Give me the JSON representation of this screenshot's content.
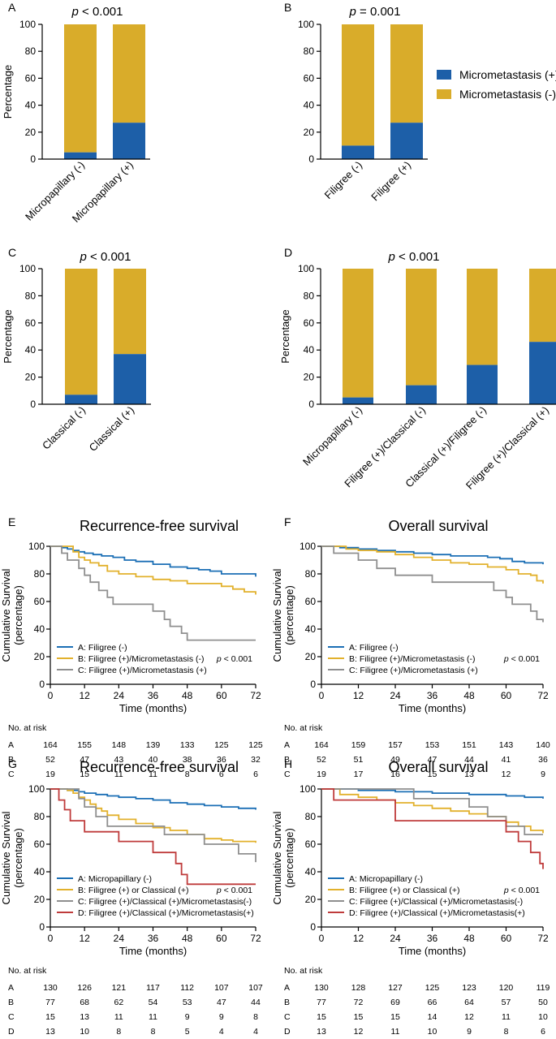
{
  "colors": {
    "positive": "#1d5fa8",
    "negative": "#d9ac2a",
    "line_a": "#1b6fb5",
    "line_b": "#e2b12c",
    "line_c": "#8f8f8f",
    "line_d": "#bf3b3b"
  },
  "legend_top": {
    "positive": "Micrometastasis (+)",
    "negative": "Micrometastasis (-)"
  },
  "chart_data": [
    {
      "panel": "A",
      "type": "bar",
      "stacked": true,
      "title": "< 0.001",
      "ylabel": "Percentage",
      "ylim": [
        0,
        100
      ],
      "yticks": [
        "0",
        "20",
        "40",
        "60",
        "80",
        "100"
      ],
      "categories": [
        "Micropapillary  (-)",
        "Micropapillary (+)"
      ],
      "series": [
        {
          "name": "Micrometastasis (+)",
          "values": [
            5,
            27
          ]
        },
        {
          "name": "Micrometastasis (-)",
          "values": [
            95,
            73
          ]
        }
      ]
    },
    {
      "panel": "B",
      "type": "bar",
      "stacked": true,
      "title": "= 0.001",
      "ylabel": "",
      "ylim": [
        0,
        100
      ],
      "yticks": [
        "0",
        "20",
        "40",
        "60",
        "80",
        "100"
      ],
      "categories": [
        "Filigree (-)",
        "Filigree (+)"
      ],
      "series": [
        {
          "name": "Micrometastasis (+)",
          "values": [
            10,
            27
          ]
        },
        {
          "name": "Micrometastasis (-)",
          "values": [
            90,
            73
          ]
        }
      ]
    },
    {
      "panel": "C",
      "type": "bar",
      "stacked": true,
      "title": "< 0.001",
      "ylabel": "Percentage",
      "ylim": [
        0,
        100
      ],
      "yticks": [
        "0",
        "20",
        "40",
        "60",
        "80",
        "100"
      ],
      "categories": [
        "Classical (-)",
        "Classical (+)"
      ],
      "series": [
        {
          "name": "Micrometastasis (+)",
          "values": [
            7,
            37
          ]
        },
        {
          "name": "Micrometastasis (-)",
          "values": [
            93,
            63
          ]
        }
      ]
    },
    {
      "panel": "D",
      "type": "bar",
      "stacked": true,
      "title": "< 0.001",
      "ylabel": "Percentage",
      "ylim": [
        0,
        100
      ],
      "yticks": [
        "0",
        "20",
        "40",
        "60",
        "80",
        "100"
      ],
      "categories": [
        "Micropapillary  (-)",
        "Filigree (+)/Classical (-)",
        "Classical (+)/Filigree (-)",
        "Filigree (+)/Classical (+)"
      ],
      "series": [
        {
          "name": "Micrometastasis (+)",
          "values": [
            5,
            14,
            29,
            46
          ]
        },
        {
          "name": "Micrometastasis (-)",
          "values": [
            95,
            86,
            71,
            54
          ]
        }
      ]
    },
    {
      "panel": "E",
      "type": "line",
      "step": true,
      "title": "Recurrence-free survival",
      "xlabel": "Time (months)",
      "ylabel": "Cumulative Survival (percentage)",
      "ylabel_lines": [
        "Cumulative Survival",
        "(percentage)"
      ],
      "xlim": [
        0,
        72
      ],
      "ylim": [
        0,
        100
      ],
      "xticks": [
        "0",
        "12",
        "24",
        "36",
        "48",
        "60",
        "72"
      ],
      "yticks": [
        "0",
        "20",
        "40",
        "60",
        "80",
        "100"
      ],
      "pvalue": "< 0.001",
      "series": [
        {
          "name": "A: Filigree (-)",
          "color_key": "line_a",
          "x": [
            0,
            4,
            6,
            8,
            10,
            12,
            15,
            18,
            22,
            26,
            30,
            36,
            42,
            48,
            52,
            56,
            60,
            66,
            72
          ],
          "y": [
            100,
            99,
            98,
            97,
            96,
            95,
            94,
            93,
            92,
            90,
            89,
            87,
            85,
            84,
            83,
            82,
            80,
            80,
            78
          ]
        },
        {
          "name": "B: Filigree (+)/Micrometastasis (-)",
          "color_key": "line_b",
          "x": [
            0,
            6,
            8,
            10,
            12,
            14,
            17,
            20,
            24,
            30,
            36,
            42,
            48,
            52,
            60,
            64,
            68,
            72
          ],
          "y": [
            100,
            100,
            96,
            92,
            90,
            88,
            86,
            82,
            80,
            78,
            76,
            75,
            73,
            73,
            71,
            69,
            67,
            65
          ]
        },
        {
          "name": "C: Filigree (+)/Micrometastasis (+)",
          "color_key": "line_c",
          "x": [
            0,
            4,
            6,
            10,
            12,
            14,
            17,
            20,
            22,
            24,
            30,
            36,
            40,
            42,
            46,
            48,
            50,
            72
          ],
          "y": [
            100,
            95,
            90,
            84,
            79,
            74,
            68,
            63,
            58,
            58,
            58,
            53,
            47,
            42,
            37,
            32,
            32,
            32
          ]
        }
      ],
      "risk_label": "No. at risk",
      "risk_rows": [
        {
          "label": "A",
          "values": [
            "164",
            "155",
            "148",
            "139",
            "133",
            "125",
            "125"
          ]
        },
        {
          "label": "B",
          "values": [
            "52",
            "47",
            "43",
            "40",
            "38",
            "36",
            "32"
          ]
        },
        {
          "label": "C",
          "values": [
            "19",
            "15",
            "11",
            "11",
            "8",
            "6",
            "6"
          ]
        }
      ]
    },
    {
      "panel": "F",
      "type": "line",
      "step": true,
      "title": "Overall survival",
      "xlabel": "Time (months)",
      "ylabel": "Cumulative Survival (percentage)",
      "ylabel_lines": [
        "Cumulative Survival",
        "(percentage)"
      ],
      "xlim": [
        0,
        72
      ],
      "ylim": [
        0,
        100
      ],
      "xticks": [
        "0",
        "12",
        "24",
        "36",
        "48",
        "60",
        "72"
      ],
      "yticks": [
        "0",
        "20",
        "40",
        "60",
        "80",
        "100"
      ],
      "pvalue": "< 0.001",
      "series": [
        {
          "name": "A: Filigree (-)",
          "color_key": "line_a",
          "x": [
            0,
            6,
            12,
            18,
            24,
            30,
            36,
            42,
            48,
            54,
            58,
            62,
            66,
            72
          ],
          "y": [
            100,
            99,
            98,
            97,
            96,
            95,
            94,
            93,
            93,
            92,
            91,
            89,
            88,
            87
          ]
        },
        {
          "name": "B: Filigree (+)/Micrometastasis (-)",
          "color_key": "line_b",
          "x": [
            0,
            8,
            12,
            18,
            24,
            30,
            36,
            42,
            48,
            54,
            60,
            64,
            68,
            70,
            72
          ],
          "y": [
            100,
            98,
            97,
            96,
            94,
            92,
            90,
            88,
            87,
            85,
            83,
            80,
            79,
            75,
            73
          ]
        },
        {
          "name": "C: Filigree (+)/Micrometastasis (+)",
          "color_key": "line_c",
          "x": [
            0,
            4,
            8,
            12,
            18,
            24,
            36,
            48,
            56,
            60,
            62,
            64,
            68,
            70,
            72
          ],
          "y": [
            100,
            95,
            95,
            90,
            84,
            79,
            74,
            74,
            68,
            63,
            58,
            58,
            53,
            47,
            45
          ]
        }
      ],
      "risk_label": "No. at risk",
      "risk_rows": [
        {
          "label": "A",
          "values": [
            "164",
            "159",
            "157",
            "153",
            "151",
            "143",
            "140"
          ]
        },
        {
          "label": "B",
          "values": [
            "52",
            "51",
            "49",
            "47",
            "44",
            "41",
            "36"
          ]
        },
        {
          "label": "C",
          "values": [
            "19",
            "17",
            "16",
            "15",
            "13",
            "12",
            "9"
          ]
        }
      ]
    },
    {
      "panel": "G",
      "type": "line",
      "step": true,
      "title": "Recurrence-free survival",
      "xlabel": "Time (months)",
      "ylabel": "Cumulative Survival (percentage)",
      "ylabel_lines": [
        "Cumulative Survival",
        "(percentage)"
      ],
      "xlim": [
        0,
        72
      ],
      "ylim": [
        0,
        100
      ],
      "xticks": [
        "0",
        "12",
        "24",
        "36",
        "48",
        "60",
        "72"
      ],
      "yticks": [
        "0",
        "20",
        "40",
        "60",
        "80",
        "100"
      ],
      "pvalue": "< 0.001",
      "series": [
        {
          "name": "A: Micropapillary (-)",
          "color_key": "line_a",
          "x": [
            0,
            6,
            10,
            12,
            16,
            20,
            24,
            30,
            36,
            42,
            48,
            54,
            60,
            66,
            72
          ],
          "y": [
            100,
            99,
            98,
            97,
            96,
            95,
            94,
            93,
            92,
            90,
            89,
            88,
            87,
            86,
            85
          ]
        },
        {
          "name": "B: Filigree (+) or Classical (+)",
          "color_key": "line_b",
          "x": [
            0,
            6,
            8,
            10,
            12,
            14,
            16,
            18,
            20,
            24,
            30,
            36,
            42,
            48,
            54,
            60,
            64,
            72
          ],
          "y": [
            100,
            99,
            97,
            94,
            92,
            89,
            86,
            84,
            81,
            78,
            75,
            72,
            70,
            67,
            64,
            63,
            62,
            61
          ]
        },
        {
          "name": "C: Filigree (+)/Classical (+)/Micrometastasis(-)",
          "color_key": "line_c",
          "x": [
            0,
            8,
            10,
            12,
            16,
            20,
            24,
            36,
            40,
            48,
            54,
            60,
            66,
            70,
            72
          ],
          "y": [
            100,
            100,
            93,
            87,
            80,
            73,
            73,
            73,
            67,
            67,
            60,
            60,
            53,
            53,
            47
          ]
        },
        {
          "name": "D: Filigree (+)/Classical (+)/Micrometastasis(+)",
          "color_key": "line_d",
          "x": [
            0,
            3,
            5,
            7,
            12,
            24,
            36,
            44,
            46,
            48,
            72
          ],
          "y": [
            100,
            92,
            85,
            77,
            69,
            62,
            54,
            46,
            38,
            31,
            31
          ]
        }
      ],
      "risk_label": "No. at risk",
      "risk_rows": [
        {
          "label": "A",
          "values": [
            "130",
            "126",
            "121",
            "117",
            "112",
            "107",
            "107"
          ]
        },
        {
          "label": "B",
          "values": [
            "77",
            "68",
            "62",
            "54",
            "53",
            "47",
            "44"
          ]
        },
        {
          "label": "C",
          "values": [
            "15",
            "13",
            "11",
            "11",
            "9",
            "9",
            "8"
          ]
        },
        {
          "label": "D",
          "values": [
            "13",
            "10",
            "8",
            "8",
            "5",
            "4",
            "4"
          ]
        }
      ]
    },
    {
      "panel": "H",
      "type": "line",
      "step": true,
      "title": "Overall survival",
      "xlabel": "Time (months)",
      "ylabel": "Cumulative Survival (percentage)",
      "ylabel_lines": [
        "Cumulative Survival",
        "(percentage)"
      ],
      "xlim": [
        0,
        72
      ],
      "ylim": [
        0,
        100
      ],
      "xticks": [
        "0",
        "12",
        "24",
        "36",
        "48",
        "60",
        "72"
      ],
      "yticks": [
        "0",
        "20",
        "40",
        "60",
        "80",
        "100"
      ],
      "pvalue": "< 0.001",
      "series": [
        {
          "name": "A: Micropapillary (-)",
          "color_key": "line_a",
          "x": [
            0,
            12,
            24,
            36,
            48,
            60,
            66,
            72
          ],
          "y": [
            100,
            99,
            98,
            97,
            96,
            95,
            94,
            93
          ]
        },
        {
          "name": "B: Filigree (+) or Classical (+)",
          "color_key": "line_b",
          "x": [
            0,
            6,
            12,
            18,
            24,
            30,
            36,
            42,
            48,
            54,
            60,
            64,
            68,
            72
          ],
          "y": [
            100,
            96,
            94,
            92,
            90,
            88,
            86,
            84,
            82,
            80,
            76,
            73,
            70,
            68
          ]
        },
        {
          "name": "C: Filigree (+)/Classical (+)/Micrometastasis(-)",
          "color_key": "line_c",
          "x": [
            0,
            24,
            30,
            36,
            48,
            54,
            60,
            66,
            72
          ],
          "y": [
            100,
            100,
            93,
            93,
            87,
            80,
            73,
            67,
            67
          ]
        },
        {
          "name": "D: Filigree (+)/Classical (+)/Micrometastasis(+)",
          "color_key": "line_d",
          "x": [
            0,
            4,
            24,
            48,
            60,
            64,
            68,
            71,
            72
          ],
          "y": [
            100,
            92,
            77,
            77,
            69,
            62,
            54,
            46,
            42
          ]
        }
      ],
      "risk_label": "No. at risk",
      "risk_rows": [
        {
          "label": "A",
          "values": [
            "130",
            "128",
            "127",
            "125",
            "123",
            "120",
            "119"
          ]
        },
        {
          "label": "B",
          "values": [
            "77",
            "72",
            "69",
            "66",
            "64",
            "57",
            "50"
          ]
        },
        {
          "label": "C",
          "values": [
            "15",
            "15",
            "15",
            "14",
            "12",
            "11",
            "10"
          ]
        },
        {
          "label": "D",
          "values": [
            "13",
            "12",
            "11",
            "10",
            "9",
            "8",
            "6"
          ]
        }
      ]
    }
  ]
}
